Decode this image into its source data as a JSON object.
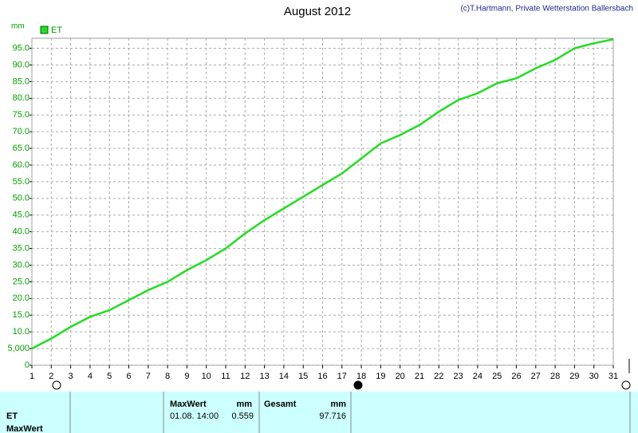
{
  "chart_data": {
    "type": "line",
    "title": "August 2012",
    "credit": "(c)T.Hartmann, Private Wetterstation Ballersbach",
    "y_label": "mm",
    "x": [
      1,
      2,
      3,
      4,
      5,
      6,
      7,
      8,
      9,
      10,
      11,
      12,
      13,
      14,
      15,
      16,
      17,
      18,
      19,
      20,
      21,
      22,
      23,
      24,
      25,
      26,
      27,
      28,
      29,
      30,
      31
    ],
    "series": [
      {
        "name": "ET",
        "color": "#22dd22",
        "values": [
          5,
          8,
          11.5,
          14.5,
          16.5,
          19.5,
          22.5,
          25,
          28.5,
          31.5,
          35,
          39.5,
          43.5,
          47,
          50.5,
          54,
          57.5,
          62,
          66.5,
          69,
          72,
          76,
          79.5,
          81.5,
          84.5,
          86,
          89,
          91.5,
          95,
          96.5,
          97.7
        ]
      }
    ],
    "xlim": [
      1,
      31
    ],
    "xticks": [
      1,
      2,
      3,
      4,
      5,
      6,
      7,
      8,
      9,
      10,
      11,
      12,
      13,
      14,
      15,
      16,
      17,
      18,
      19,
      20,
      21,
      22,
      23,
      24,
      25,
      26,
      27,
      28,
      29,
      30,
      31
    ],
    "ylim": [
      0,
      98
    ],
    "yticks": [
      0,
      {
        "value": 5,
        "label": "5,000"
      },
      {
        "value": 10,
        "label": "10.0"
      },
      {
        "value": 15,
        "label": "15.0"
      },
      {
        "value": 20,
        "label": "20.0"
      },
      {
        "value": 25,
        "label": "25.0"
      },
      {
        "value": 30,
        "label": "30.0"
      },
      {
        "value": 35,
        "label": "35.0"
      },
      {
        "value": 40,
        "label": "40.0"
      },
      {
        "value": 45,
        "label": "45.0"
      },
      {
        "value": 50,
        "label": "50.0"
      },
      {
        "value": 55,
        "label": "55.0"
      },
      {
        "value": 60,
        "label": "60.0"
      },
      {
        "value": 65,
        "label": "65.0"
      },
      {
        "value": 70,
        "label": "70.0"
      },
      {
        "value": 75,
        "label": "75.0"
      },
      {
        "value": 80,
        "label": "80.0"
      },
      {
        "value": 85,
        "label": "85.0"
      },
      {
        "value": 90,
        "label": "90.0"
      },
      {
        "value": 95,
        "label": "95.0"
      }
    ],
    "grid": true
  },
  "table": {
    "rows": [
      [
        "ET",
        "MaxWert"
      ]
    ],
    "maxwert": {
      "header": "MaxWert",
      "unit": "mm",
      "time": "01.08. 14:00",
      "value": "0.559"
    },
    "gesamt": {
      "header": "Gesamt",
      "unit": "mm",
      "value": "97.716"
    }
  }
}
